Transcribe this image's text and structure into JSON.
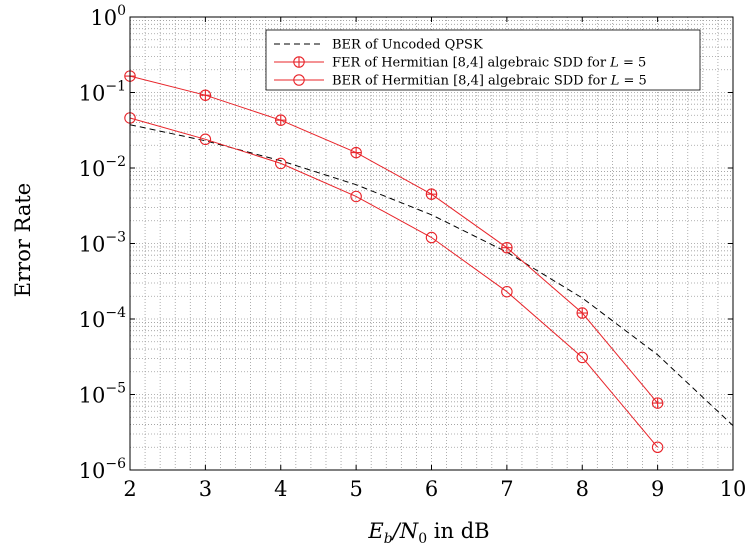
{
  "chart_data": {
    "type": "line",
    "xlabel": "E_b/N_0 in dB",
    "ylabel": "Error Rate",
    "xlim": [
      2,
      10
    ],
    "ylim": [
      1e-06,
      1
    ],
    "yscale": "log",
    "grid": true,
    "legend_position": "top-right",
    "x_ticks": [
      2,
      3,
      4,
      5,
      6,
      7,
      8,
      9,
      10
    ],
    "y_ticks": [
      {
        "value": 1,
        "exp": "0"
      },
      {
        "value": 0.1,
        "exp": "−1"
      },
      {
        "value": 0.01,
        "exp": "−2"
      },
      {
        "value": 0.001,
        "exp": "−3"
      },
      {
        "value": 0.0001,
        "exp": "−4"
      },
      {
        "value": 1e-05,
        "exp": "−5"
      },
      {
        "value": 1e-06,
        "exp": "−6"
      }
    ],
    "series": [
      {
        "name": "BER of Uncoded QPSK",
        "color": "#000000",
        "style": "dashed",
        "marker": "none",
        "x": [
          2,
          3,
          4,
          5,
          6,
          7,
          8,
          9,
          10
        ],
        "y": [
          0.0375,
          0.0229,
          0.0125,
          0.006,
          0.0024,
          0.00077,
          0.00019,
          3.36e-05,
          3.87e-06
        ]
      },
      {
        "name": "FER of Hermitian [8,4] algebraic SDD for L = 5",
        "color": "#e8242a",
        "style": "solid",
        "marker": "circle-plus",
        "x": [
          2,
          3,
          4,
          5,
          6,
          7,
          8,
          9
        ],
        "y": [
          0.165,
          0.092,
          0.043,
          0.016,
          0.0045,
          0.00088,
          0.00012,
          7.7e-06
        ]
      },
      {
        "name": "BER of Hermitian [8,4] algebraic SDD for L = 5",
        "color": "#e8242a",
        "style": "solid",
        "marker": "circle",
        "x": [
          2,
          3,
          4,
          5,
          6,
          7,
          8,
          9
        ],
        "y": [
          0.046,
          0.024,
          0.0115,
          0.0042,
          0.0012,
          0.00023,
          3.1e-05,
          2e-06
        ]
      }
    ]
  }
}
